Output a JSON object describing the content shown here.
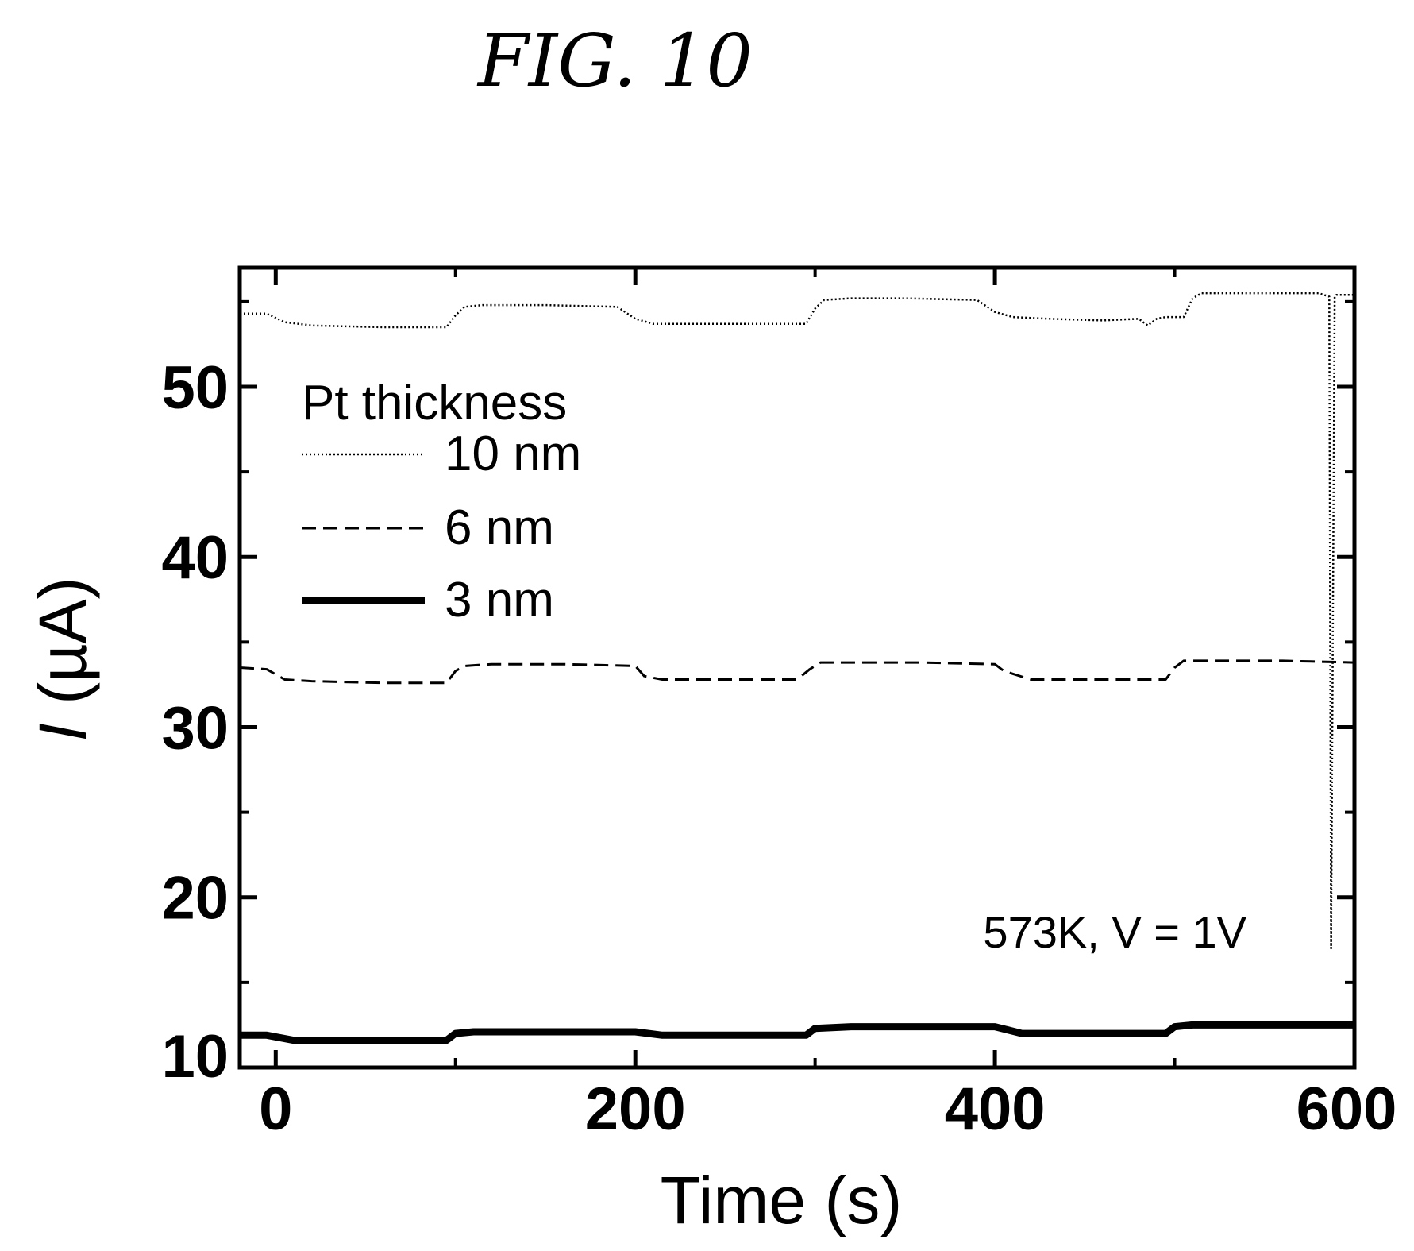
{
  "figure_label": "FIG. 10",
  "chart_data": {
    "type": "line",
    "title": "",
    "xlabel": "Time (s)",
    "ylabel_symbol": "I",
    "ylabel_unit": " (µA)",
    "xlim": [
      -20,
      600
    ],
    "ylim": [
      10,
      57
    ],
    "xticks": [
      0,
      200,
      400,
      600
    ],
    "xtick_labels": [
      "0",
      "200",
      "400",
      "600"
    ],
    "yticks": [
      10,
      20,
      30,
      40,
      50
    ],
    "ytick_labels": [
      "10",
      "20",
      "30",
      "40",
      "50"
    ],
    "grid": false,
    "legend": {
      "title": "Pt thickness",
      "placement": "top-left"
    },
    "annotation": "573K, V = 1V",
    "series": [
      {
        "name": "10 nm",
        "style": "dotted",
        "x": [
          -20,
          -5,
          5,
          20,
          60,
          95,
          100,
          105,
          115,
          150,
          190,
          200,
          210,
          230,
          270,
          295,
          300,
          305,
          320,
          350,
          390,
          400,
          410,
          430,
          460,
          480,
          485,
          490,
          495,
          505,
          510,
          515,
          540,
          580,
          586,
          587,
          589,
          590,
          600
        ],
        "y": [
          54.3,
          54.3,
          53.8,
          53.6,
          53.5,
          53.5,
          54.2,
          54.7,
          54.8,
          54.8,
          54.7,
          54.0,
          53.7,
          53.7,
          53.7,
          53.7,
          54.6,
          55.1,
          55.2,
          55.2,
          55.1,
          54.4,
          54.1,
          54.0,
          53.9,
          54.0,
          53.6,
          54.0,
          54.1,
          54.1,
          55.2,
          55.5,
          55.5,
          55.5,
          55.3,
          17.0,
          55.3,
          55.4,
          55.4
        ]
      },
      {
        "name": "6 nm",
        "style": "dashed",
        "x": [
          -20,
          -5,
          5,
          20,
          60,
          95,
          100,
          105,
          120,
          160,
          200,
          205,
          215,
          250,
          290,
          297,
          303,
          320,
          360,
          400,
          405,
          420,
          460,
          495,
          500,
          505,
          520,
          560,
          600
        ],
        "y": [
          33.5,
          33.4,
          32.8,
          32.7,
          32.6,
          32.6,
          33.3,
          33.6,
          33.7,
          33.7,
          33.6,
          33.0,
          32.8,
          32.8,
          32.8,
          33.4,
          33.8,
          33.8,
          33.8,
          33.7,
          33.3,
          32.8,
          32.8,
          32.8,
          33.5,
          33.9,
          33.9,
          33.9,
          33.8
        ]
      },
      {
        "name": "3 nm",
        "style": "solid",
        "x": [
          -20,
          -5,
          10,
          60,
          95,
          100,
          110,
          160,
          200,
          215,
          260,
          295,
          300,
          320,
          380,
          400,
          415,
          460,
          495,
          500,
          510,
          560,
          600
        ],
        "y": [
          11.9,
          11.9,
          11.6,
          11.6,
          11.6,
          12.0,
          12.1,
          12.1,
          12.1,
          11.9,
          11.9,
          11.9,
          12.3,
          12.4,
          12.4,
          12.4,
          12.0,
          12.0,
          12.0,
          12.4,
          12.5,
          12.5,
          12.5
        ]
      }
    ]
  }
}
